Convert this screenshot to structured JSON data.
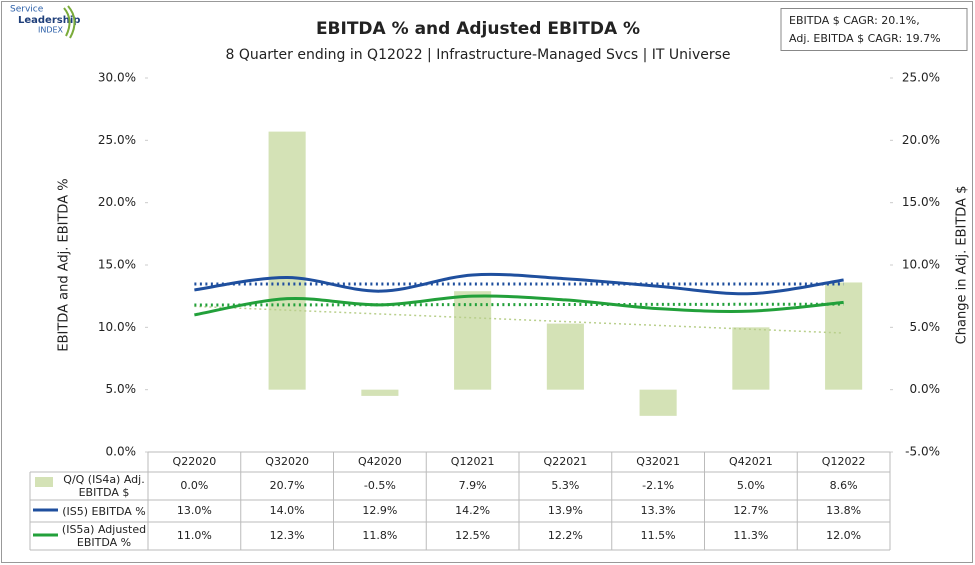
{
  "chart_data": {
    "type": "combo",
    "title": "EBITDA % and Adjusted EBITDA %",
    "subtitle": "8 Quarter ending in Q12022 | Infrastructure-Managed Svcs | IT Universe",
    "logo": [
      "Service",
      "Leadership",
      "INDEX"
    ],
    "annotation": [
      "EBITDA $ CAGR: 20.1%,",
      "Adj. EBITDA $ CAGR: 19.7%"
    ],
    "ylabel": "EBITDA and Adj. EBITDA %",
    "y2label": "Change in Adj. EBITDA $",
    "categories": [
      "Q22020",
      "Q32020",
      "Q42020",
      "Q12021",
      "Q22021",
      "Q32021",
      "Q42021",
      "Q12022"
    ],
    "ylim": [
      0,
      30
    ],
    "yticks": [
      {
        "value": 0,
        "label": "0.0%"
      },
      {
        "value": 5,
        "label": "5.0%"
      },
      {
        "value": 10,
        "label": "10.0%"
      },
      {
        "value": 15,
        "label": "15.0%"
      },
      {
        "value": 20,
        "label": "20.0%"
      },
      {
        "value": 25,
        "label": "25.0%"
      },
      {
        "value": 30,
        "label": "30.0%"
      }
    ],
    "y2lim": [
      -5,
      25
    ],
    "y2ticks": [
      {
        "value": -5,
        "label": "-5.0%"
      },
      {
        "value": 0,
        "label": "0.0%"
      },
      {
        "value": 5,
        "label": "5.0%"
      },
      {
        "value": 10,
        "label": "10.0%"
      },
      {
        "value": 15,
        "label": "15.0%"
      },
      {
        "value": 20,
        "label": "20.0%"
      },
      {
        "value": 25,
        "label": "25.0%"
      }
    ],
    "trendline": true,
    "series": [
      {
        "name": "Q/Q (IS4a) Adj. EBITDA $",
        "type": "bar",
        "axis": "y2",
        "color": "#d4e2b6",
        "values": [
          0.0,
          20.7,
          -0.5,
          7.9,
          5.3,
          -2.1,
          5.0,
          8.6
        ],
        "value_labels": [
          "0.0%",
          "20.7%",
          "-0.5%",
          "7.9%",
          "5.3%",
          "-2.1%",
          "5.0%",
          "8.6%"
        ]
      },
      {
        "name": "(IS5) EBITDA %",
        "type": "line",
        "axis": "y",
        "color": "#1f4f9e",
        "values": [
          13.0,
          14.0,
          12.9,
          14.2,
          13.9,
          13.3,
          12.7,
          13.8
        ],
        "value_labels": [
          "13.0%",
          "14.0%",
          "12.9%",
          "14.2%",
          "13.9%",
          "13.3%",
          "12.7%",
          "13.8%"
        ]
      },
      {
        "name": "(IS5a) Adjusted EBITDA %",
        "type": "line",
        "axis": "y",
        "color": "#22a03a",
        "values": [
          11.0,
          12.3,
          11.8,
          12.5,
          12.2,
          11.5,
          11.3,
          12.0
        ],
        "value_labels": [
          "11.0%",
          "12.3%",
          "11.8%",
          "12.5%",
          "12.2%",
          "11.5%",
          "11.3%",
          "12.0%"
        ]
      }
    ]
  }
}
